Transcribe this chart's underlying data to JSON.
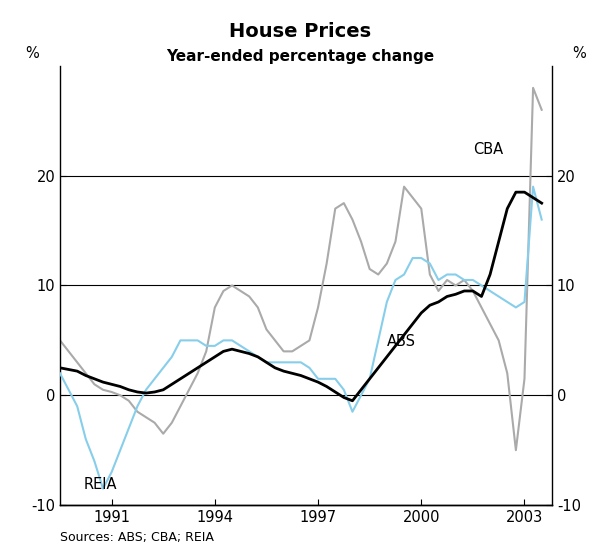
{
  "title": "House Prices",
  "subtitle": "Year-ended percentage change",
  "source": "Sources: ABS; CBA; REIA",
  "ylim": [
    -10,
    30
  ],
  "yticks": [
    -10,
    0,
    10,
    20
  ],
  "ylabel_left": "%",
  "ylabel_right": "%",
  "background_color": "#ffffff",
  "line_colors": {
    "ABS": "#000000",
    "CBA": "#aaaaaa",
    "REIA": "#87ceeb"
  },
  "line_widths": {
    "ABS": 2.0,
    "CBA": 1.5,
    "REIA": 1.5
  },
  "label_positions": {
    "ABS": [
      1999.0,
      4.5
    ],
    "CBA": [
      2001.5,
      22.0
    ],
    "REIA": [
      1990.2,
      -8.5
    ]
  },
  "xticks": [
    1991,
    1994,
    1997,
    2000,
    2003
  ],
  "xlim": [
    1989.5,
    2003.8
  ],
  "ABS_x": [
    1989.5,
    1990.0,
    1990.25,
    1990.5,
    1990.75,
    1991.0,
    1991.25,
    1991.5,
    1991.75,
    1992.0,
    1992.25,
    1992.5,
    1992.75,
    1993.0,
    1993.25,
    1993.5,
    1993.75,
    1994.0,
    1994.25,
    1994.5,
    1994.75,
    1995.0,
    1995.25,
    1995.5,
    1995.75,
    1996.0,
    1996.25,
    1996.5,
    1996.75,
    1997.0,
    1997.25,
    1997.5,
    1997.75,
    1998.0,
    1998.25,
    1998.5,
    1998.75,
    1999.0,
    1999.25,
    1999.5,
    1999.75,
    2000.0,
    2000.25,
    2000.5,
    2000.75,
    2001.0,
    2001.25,
    2001.5,
    2001.75,
    2002.0,
    2002.25,
    2002.5,
    2002.75,
    2003.0,
    2003.25,
    2003.5
  ],
  "ABS_y": [
    2.5,
    2.2,
    1.8,
    1.5,
    1.2,
    1.0,
    0.8,
    0.5,
    0.3,
    0.2,
    0.3,
    0.5,
    1.0,
    1.5,
    2.0,
    2.5,
    3.0,
    3.5,
    4.0,
    4.2,
    4.0,
    3.8,
    3.5,
    3.0,
    2.5,
    2.2,
    2.0,
    1.8,
    1.5,
    1.2,
    0.8,
    0.3,
    -0.2,
    -0.5,
    0.5,
    1.5,
    2.5,
    3.5,
    4.5,
    5.5,
    6.5,
    7.5,
    8.2,
    8.5,
    9.0,
    9.2,
    9.5,
    9.5,
    9.0,
    11.0,
    14.0,
    17.0,
    18.5,
    18.5,
    18.0,
    17.5
  ],
  "CBA_x": [
    1989.5,
    1989.75,
    1990.0,
    1990.25,
    1990.5,
    1990.75,
    1991.0,
    1991.25,
    1991.5,
    1991.75,
    1992.0,
    1992.25,
    1992.5,
    1992.75,
    1993.0,
    1993.25,
    1993.5,
    1993.75,
    1994.0,
    1994.25,
    1994.5,
    1994.75,
    1995.0,
    1995.25,
    1995.5,
    1995.75,
    1996.0,
    1996.25,
    1996.5,
    1996.75,
    1997.0,
    1997.25,
    1997.5,
    1997.75,
    1998.0,
    1998.25,
    1998.5,
    1998.75,
    1999.0,
    1999.25,
    1999.5,
    1999.75,
    2000.0,
    2000.25,
    2000.5,
    2000.75,
    2001.0,
    2001.25,
    2001.5,
    2001.75,
    2002.0,
    2002.25,
    2002.5,
    2002.75,
    2003.0,
    2003.25,
    2003.5
  ],
  "CBA_y": [
    5.0,
    4.0,
    3.0,
    2.0,
    1.0,
    0.5,
    0.3,
    0.0,
    -0.5,
    -1.5,
    -2.0,
    -2.5,
    -3.5,
    -2.5,
    -1.0,
    0.5,
    2.0,
    4.0,
    8.0,
    9.5,
    10.0,
    9.5,
    9.0,
    8.0,
    6.0,
    5.0,
    4.0,
    4.0,
    4.5,
    5.0,
    8.0,
    12.0,
    17.0,
    17.5,
    16.0,
    14.0,
    11.5,
    11.0,
    12.0,
    14.0,
    19.0,
    18.0,
    17.0,
    11.0,
    9.5,
    10.5,
    10.0,
    10.5,
    9.5,
    8.0,
    6.5,
    5.0,
    2.0,
    -5.0,
    1.5,
    28.0,
    26.0
  ],
  "REIA_x": [
    1989.5,
    1989.75,
    1990.0,
    1990.25,
    1990.5,
    1990.75,
    1991.0,
    1991.25,
    1991.5,
    1991.75,
    1992.0,
    1992.25,
    1992.5,
    1992.75,
    1993.0,
    1993.25,
    1993.5,
    1993.75,
    1994.0,
    1994.25,
    1994.5,
    1994.75,
    1995.0,
    1995.25,
    1995.5,
    1995.75,
    1996.0,
    1996.25,
    1996.5,
    1996.75,
    1997.0,
    1997.25,
    1997.5,
    1997.75,
    1998.0,
    1998.25,
    1998.5,
    1998.75,
    1999.0,
    1999.25,
    1999.5,
    1999.75,
    2000.0,
    2000.25,
    2000.5,
    2000.75,
    2001.0,
    2001.25,
    2001.5,
    2001.75,
    2002.0,
    2002.25,
    2002.5,
    2002.75,
    2003.0,
    2003.25,
    2003.5
  ],
  "REIA_y": [
    2.0,
    0.5,
    -1.0,
    -4.0,
    -6.0,
    -8.5,
    -7.0,
    -5.0,
    -3.0,
    -1.0,
    0.5,
    1.5,
    2.5,
    3.5,
    5.0,
    5.0,
    5.0,
    4.5,
    4.5,
    5.0,
    5.0,
    4.5,
    4.0,
    3.5,
    3.0,
    3.0,
    3.0,
    3.0,
    3.0,
    2.5,
    1.5,
    1.5,
    1.5,
    0.5,
    -1.5,
    0.0,
    1.5,
    5.0,
    8.5,
    10.5,
    11.0,
    12.5,
    12.5,
    12.0,
    10.5,
    11.0,
    11.0,
    10.5,
    10.5,
    10.0,
    9.5,
    9.0,
    8.5,
    8.0,
    8.5,
    19.0,
    16.0
  ],
  "figsize": [
    6.0,
    5.49
  ],
  "dpi": 100
}
